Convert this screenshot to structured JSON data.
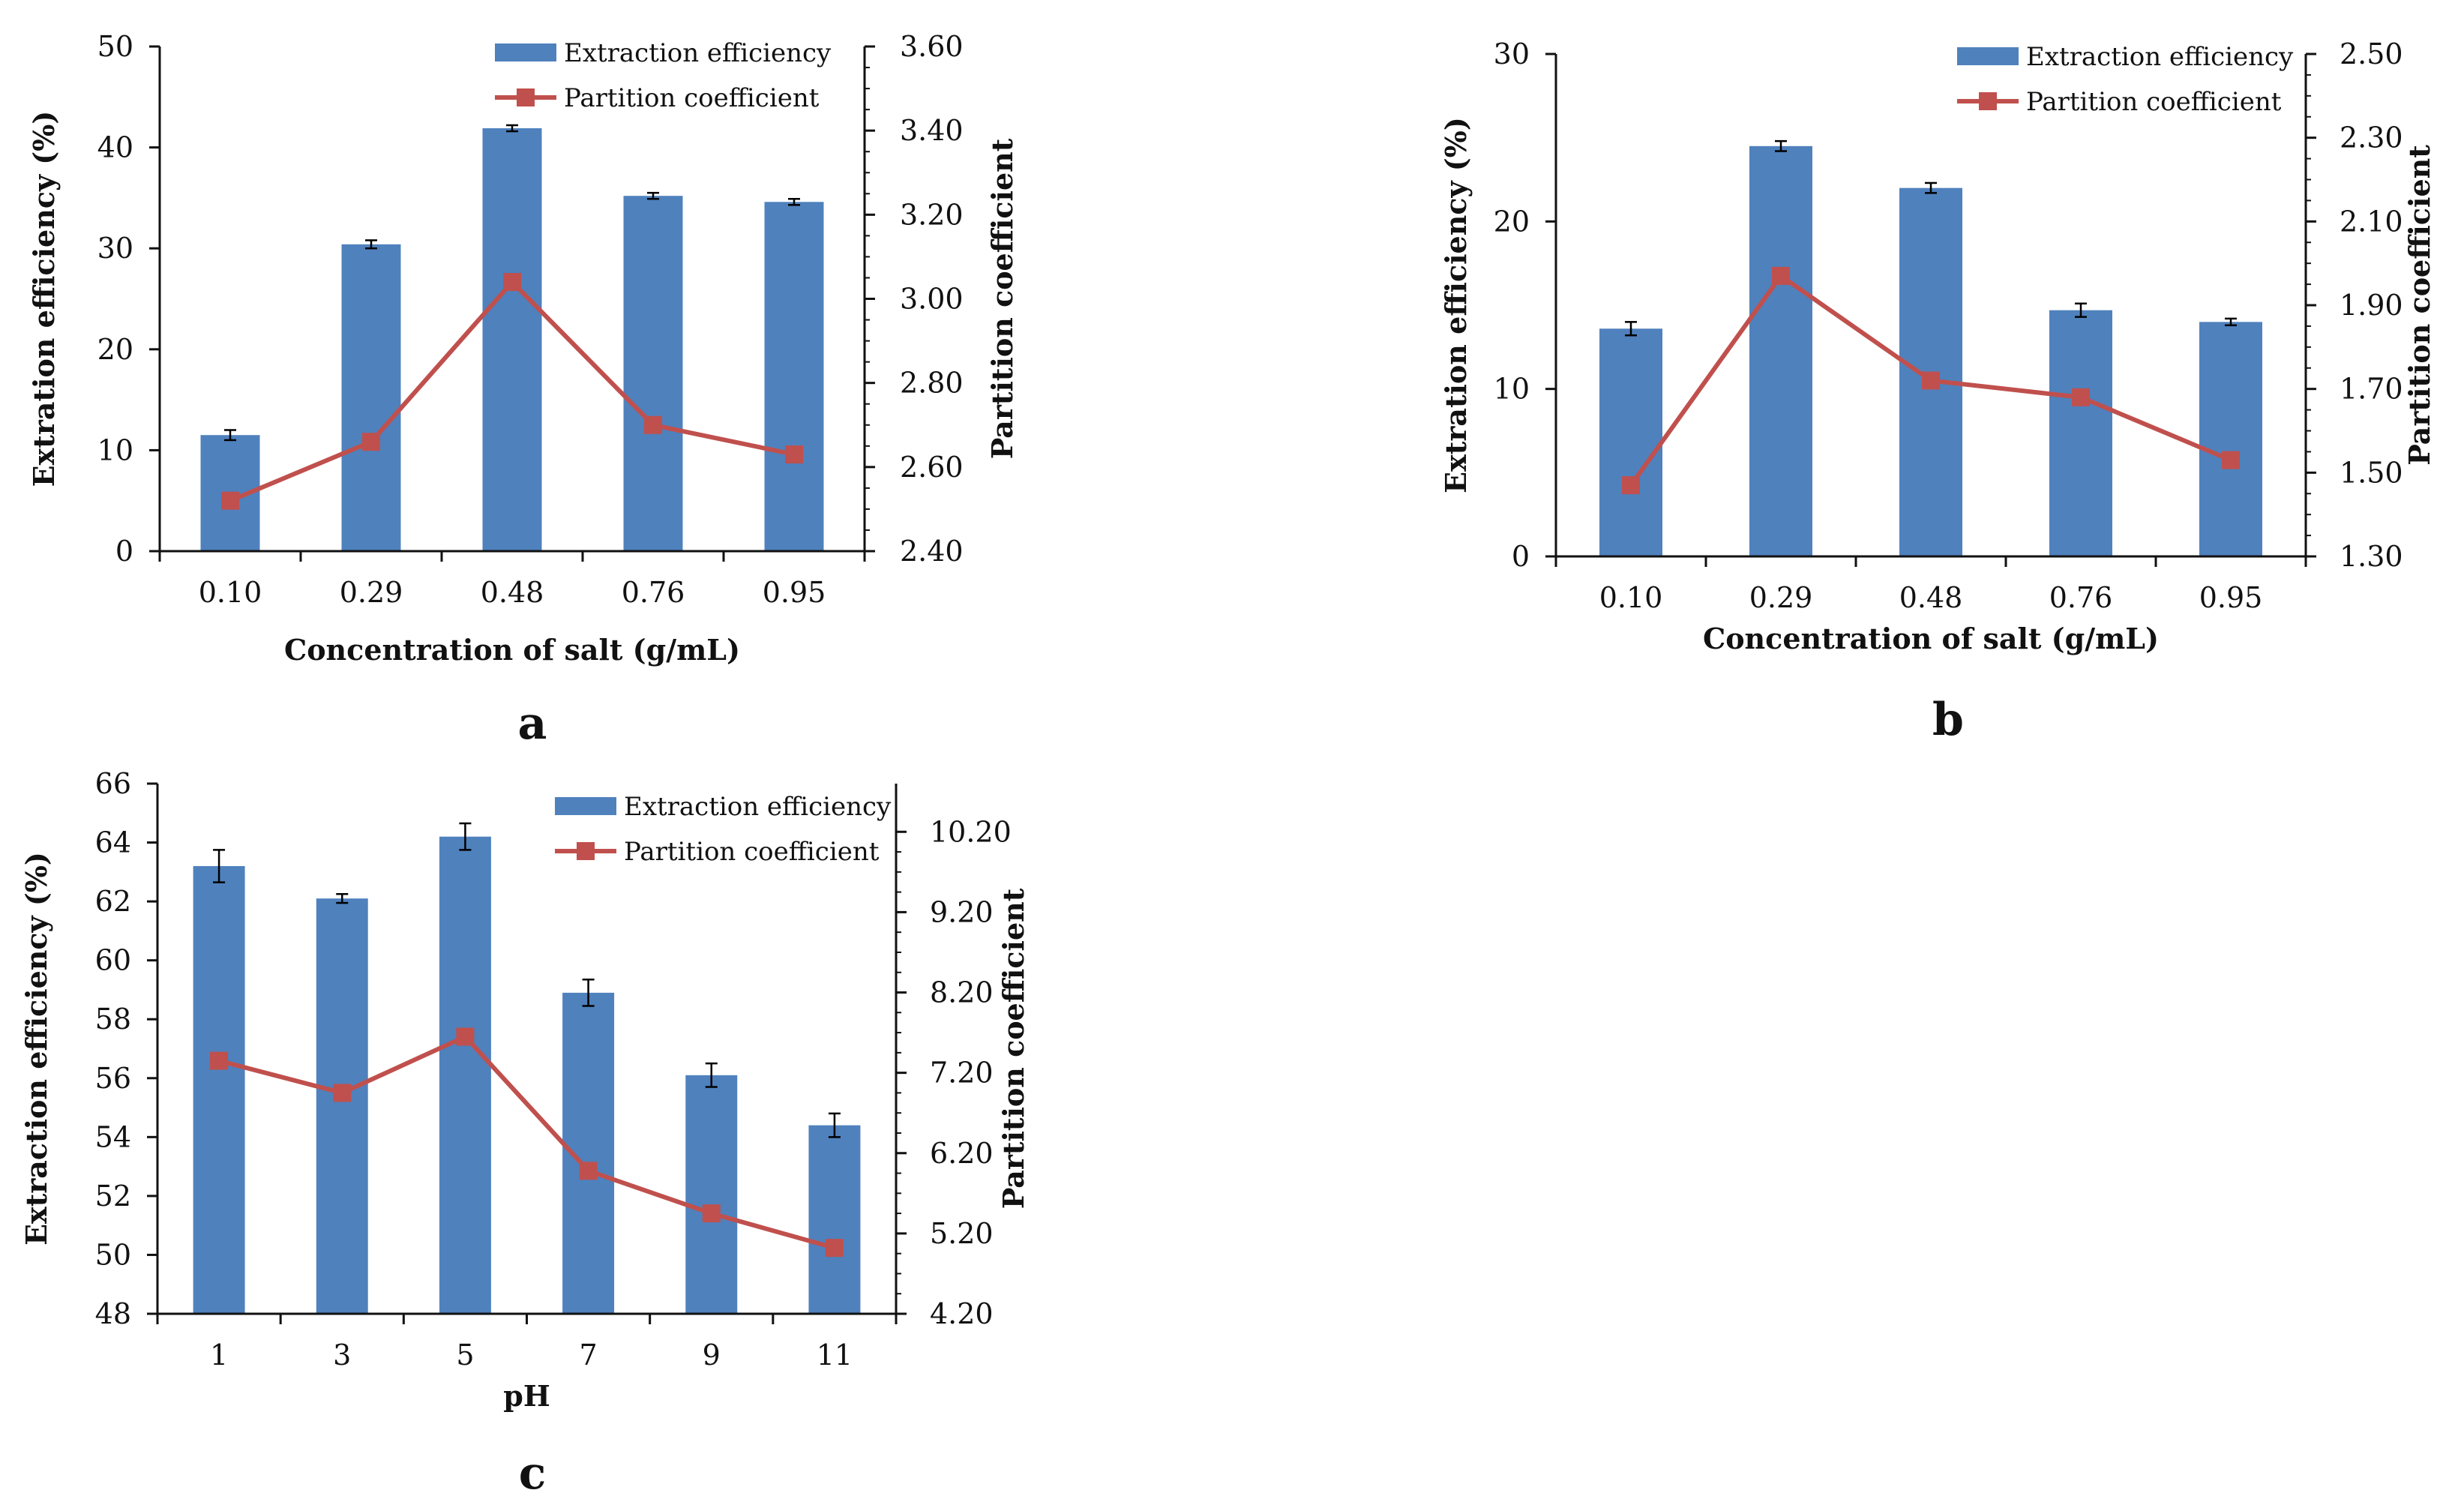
{
  "chart_data": [
    {
      "panel": "a",
      "type": "bar+line",
      "xlabel": "Concentration of salt (g/mL)",
      "ylabel_left": "Extration efficiency (%)",
      "ylabel_right": "Partition coefficient",
      "categories": [
        "0.10",
        "0.29",
        "0.48",
        "0.76",
        "0.95"
      ],
      "series": [
        {
          "name": "Extraction efficiency",
          "kind": "bar",
          "axis": "left",
          "values": [
            11.5,
            30.4,
            41.9,
            35.2,
            34.6
          ],
          "errors": [
            0.5,
            0.4,
            0.3,
            0.3,
            0.3
          ]
        },
        {
          "name": "Partition coefficient",
          "kind": "line",
          "axis": "right",
          "values": [
            2.52,
            2.66,
            3.04,
            2.7,
            2.63
          ]
        }
      ],
      "ylim_left": [
        0,
        50
      ],
      "ylim_right": [
        2.4,
        3.6
      ],
      "yticks_left": [
        "0",
        "10",
        "20",
        "30",
        "40",
        "50"
      ],
      "yticks_right": [
        "2.40",
        "2.60",
        "2.80",
        "3.00",
        "3.20",
        "3.40",
        "3.60"
      ],
      "legend_position": "top-right"
    },
    {
      "panel": "b",
      "type": "bar+line",
      "xlabel": "Concentration of salt (g/mL)",
      "ylabel_left": "Extration efficiency (%)",
      "ylabel_right": "Partition coefficient",
      "categories": [
        "0.10",
        "0.29",
        "0.48",
        "0.76",
        "0.95"
      ],
      "series": [
        {
          "name": "Extraction efficiency",
          "kind": "bar",
          "axis": "left",
          "values": [
            13.6,
            24.5,
            22.0,
            14.7,
            14.0
          ],
          "errors": [
            0.4,
            0.3,
            0.3,
            0.4,
            0.2
          ]
        },
        {
          "name": "Partition coefficient",
          "kind": "line",
          "axis": "right",
          "values": [
            1.47,
            1.97,
            1.72,
            1.68,
            1.53
          ]
        }
      ],
      "ylim_left": [
        0,
        30
      ],
      "ylim_right": [
        1.3,
        2.5
      ],
      "yticks_left": [
        "0",
        "10",
        "20",
        "30"
      ],
      "yticks_right": [
        "1.30",
        "1.50",
        "1.70",
        "1.90",
        "2.10",
        "2.30",
        "2.50"
      ],
      "legend_position": "top-right"
    },
    {
      "panel": "c",
      "type": "bar+line",
      "xlabel": "pH",
      "ylabel_left": "Extraction efficiency (%)",
      "ylabel_right": "Partition coefficient",
      "categories": [
        "1",
        "3",
        "5",
        "7",
        "9",
        "11"
      ],
      "series": [
        {
          "name": "Extraction efficiency",
          "kind": "bar",
          "axis": "left",
          "values": [
            63.2,
            62.1,
            64.2,
            58.9,
            56.1,
            54.4
          ],
          "errors": [
            0.55,
            0.15,
            0.45,
            0.45,
            0.4,
            0.4
          ]
        },
        {
          "name": "Partition coefficient",
          "kind": "line",
          "axis": "right",
          "values": [
            7.35,
            6.95,
            7.65,
            5.98,
            5.45,
            5.02
          ]
        }
      ],
      "ylim_left": [
        48,
        66
      ],
      "ylim_right": [
        4.2,
        10.8
      ],
      "yticks_left": [
        "48",
        "50",
        "52",
        "54",
        "56",
        "58",
        "60",
        "62",
        "64",
        "66"
      ],
      "yticks_right": [
        "4.20",
        "5.20",
        "6.20",
        "7.20",
        "8.20",
        "9.20",
        "10.20"
      ],
      "legend_position": "top-right"
    }
  ],
  "colors": {
    "bar": "#4f81bd",
    "line": "#c0504d",
    "axis": "#111111"
  }
}
